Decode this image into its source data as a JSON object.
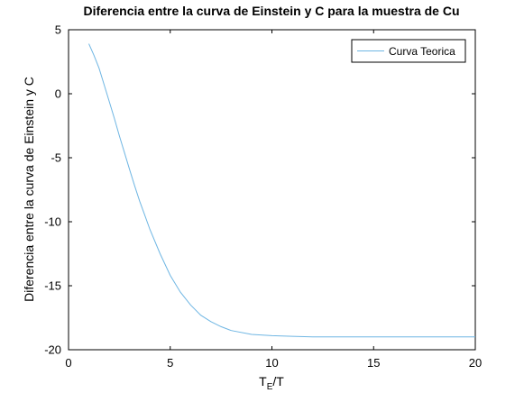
{
  "chart_data": {
    "type": "line",
    "title": "Diferencia entre la curva de Einstein y C para la muestra de Cu",
    "xlabel_main": "T",
    "xlabel_sub": "E",
    "xlabel_tail": "/T",
    "ylabel": "Diferencia entre la curva de Einstein y C",
    "xlim": [
      0,
      20
    ],
    "ylim": [
      -20,
      5
    ],
    "xticks": [
      0,
      5,
      10,
      15,
      20
    ],
    "yticks": [
      -20,
      -15,
      -10,
      -5,
      0,
      5
    ],
    "xtick_labels": [
      "0",
      "5",
      "10",
      "15",
      "20"
    ],
    "ytick_labels": [
      "-20",
      "-15",
      "-10",
      "-5",
      "0",
      "5"
    ],
    "grid": false,
    "legend_position": "top-right",
    "series": [
      {
        "name": "Curva Teorica",
        "color": "#6fb6e3",
        "x": [
          1.0,
          1.25,
          1.5,
          1.75,
          2.0,
          2.25,
          2.5,
          2.75,
          3.0,
          3.25,
          3.5,
          3.75,
          4.0,
          4.5,
          5.0,
          5.5,
          6.0,
          6.5,
          7.0,
          7.5,
          8.0,
          9.0,
          10.0,
          11.0,
          12.0,
          14.0,
          16.0,
          18.0,
          20.0
        ],
        "y": [
          3.9,
          3.0,
          2.0,
          0.7,
          -0.6,
          -1.9,
          -3.3,
          -4.6,
          -5.9,
          -7.2,
          -8.4,
          -9.5,
          -10.6,
          -12.5,
          -14.2,
          -15.5,
          -16.5,
          -17.3,
          -17.8,
          -18.2,
          -18.5,
          -18.8,
          -18.9,
          -18.95,
          -19.0,
          -19.0,
          -19.0,
          -19.0,
          -19.0
        ]
      }
    ]
  }
}
